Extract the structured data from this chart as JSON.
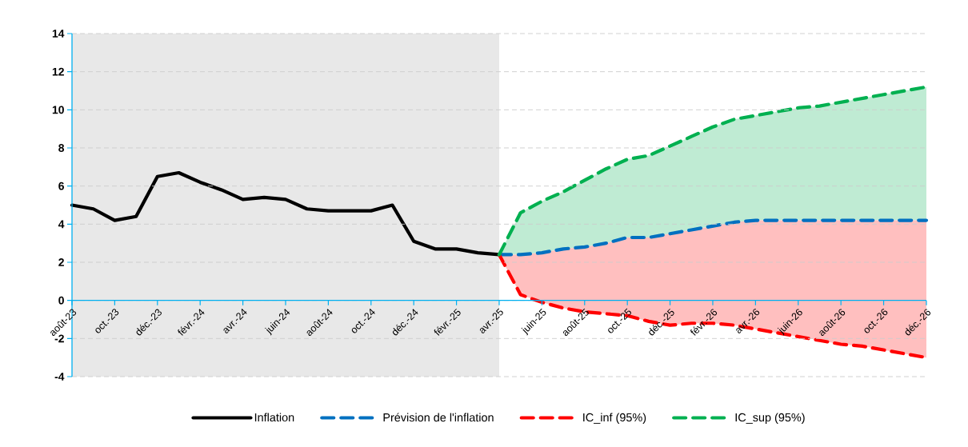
{
  "chart_data": {
    "type": "line",
    "grid": "y",
    "legend": "bottom",
    "marker": "none",
    "xlim": [
      "2023-08",
      "2026-12"
    ],
    "xticks": [
      {
        "value": "2023-08",
        "label": "août-23"
      },
      {
        "value": "2023-10",
        "label": "oct.-23"
      },
      {
        "value": "2023-12",
        "label": "déc.-23"
      },
      {
        "value": "2024-02",
        "label": "févr.-24"
      },
      {
        "value": "2024-04",
        "label": "avr.-24"
      },
      {
        "value": "2024-06",
        "label": "juin-24"
      },
      {
        "value": "2024-08",
        "label": "août-24"
      },
      {
        "value": "2024-10",
        "label": "oct.-24"
      },
      {
        "value": "2024-12",
        "label": "déc.-24"
      },
      {
        "value": "2025-02",
        "label": "févr.-25"
      },
      {
        "value": "2025-04",
        "label": "avr.-25"
      },
      {
        "value": "2025-06",
        "label": "juin-25"
      },
      {
        "value": "2025-08",
        "label": "août-25"
      },
      {
        "value": "2025-10",
        "label": "oct.-25"
      },
      {
        "value": "2025-12",
        "label": "déc.-25"
      },
      {
        "value": "2026-02",
        "label": "févr.-26"
      },
      {
        "value": "2026-04",
        "label": "avr.-26"
      },
      {
        "value": "2026-06",
        "label": "juin-26"
      },
      {
        "value": "2026-08",
        "label": "août-26"
      },
      {
        "value": "2026-10",
        "label": "oct.-26"
      },
      {
        "value": "2026-12",
        "label": "déc.-26"
      }
    ],
    "ylim": [
      -4,
      14
    ],
    "yticks": [
      -4,
      -2,
      0,
      2,
      4,
      6,
      8,
      10,
      12,
      14
    ],
    "bands": [
      {
        "axis": "x",
        "from": "2023-08",
        "to": "2025-04",
        "color": "#e8e8e8"
      }
    ],
    "series": [
      {
        "name": "Inflation",
        "color": "#000000",
        "line_style": "solid",
        "x": [
          "2023-08",
          "2023-09",
          "2023-10",
          "2023-11",
          "2023-12",
          "2024-01",
          "2024-02",
          "2024-03",
          "2024-04",
          "2024-05",
          "2024-06",
          "2024-07",
          "2024-08",
          "2024-09",
          "2024-10",
          "2024-11",
          "2024-12",
          "2025-01",
          "2025-02",
          "2025-03",
          "2025-04"
        ],
        "values": [
          5.0,
          4.8,
          4.2,
          4.4,
          6.5,
          6.7,
          6.2,
          5.8,
          5.3,
          5.4,
          5.3,
          4.8,
          4.7,
          4.7,
          4.7,
          5.0,
          3.1,
          2.7,
          2.7,
          2.5,
          2.4
        ]
      },
      {
        "name": "Prévision de l'inflation",
        "color": "#0070c0",
        "line_style": "dashed",
        "x": [
          "2025-04",
          "2025-05",
          "2025-06",
          "2025-07",
          "2025-08",
          "2025-09",
          "2025-10",
          "2025-11",
          "2025-12",
          "2026-01",
          "2026-02",
          "2026-03",
          "2026-04",
          "2026-05",
          "2026-06",
          "2026-07",
          "2026-08",
          "2026-09",
          "2026-10",
          "2026-11",
          "2026-12"
        ],
        "values": [
          2.4,
          2.4,
          2.5,
          2.7,
          2.8,
          3.0,
          3.3,
          3.3,
          3.5,
          3.7,
          3.9,
          4.1,
          4.2,
          4.2,
          4.2,
          4.2,
          4.2,
          4.2,
          4.2,
          4.2,
          4.2
        ],
        "lower": [
          2.4,
          2.4,
          2.5,
          2.7,
          2.8,
          3.0,
          3.3,
          3.3,
          3.5,
          3.7,
          3.9,
          4.1,
          4.2,
          4.2,
          4.2,
          4.2,
          4.2,
          4.2,
          4.2,
          4.2,
          4.2
        ],
        "upper": [
          2.4,
          4.6,
          5.2,
          5.7,
          6.3,
          6.9,
          7.4,
          7.6,
          8.1,
          8.6,
          9.1,
          9.5,
          9.7,
          9.9,
          10.1,
          10.2,
          10.4,
          10.6,
          10.8,
          11.0,
          11.2
        ]
      },
      {
        "name": "IC_inf (95%)",
        "color": "#ff0000",
        "line_style": "dashed",
        "x": [
          "2025-04",
          "2025-05",
          "2025-06",
          "2025-07",
          "2025-08",
          "2025-09",
          "2025-10",
          "2025-11",
          "2025-12",
          "2026-01",
          "2026-02",
          "2026-03",
          "2026-04",
          "2026-05",
          "2026-06",
          "2026-07",
          "2026-08",
          "2026-09",
          "2026-10",
          "2026-11",
          "2026-12"
        ],
        "values": [
          2.4,
          0.3,
          -0.1,
          -0.4,
          -0.6,
          -0.7,
          -0.8,
          -1.1,
          -1.3,
          -1.2,
          -1.2,
          -1.3,
          -1.5,
          -1.7,
          -1.9,
          -2.1,
          -2.3,
          -2.4,
          -2.6,
          -2.8,
          -3.0
        ],
        "lower": [
          2.4,
          0.3,
          -0.1,
          -0.4,
          -0.6,
          -0.7,
          -0.8,
          -1.1,
          -1.3,
          -1.2,
          -1.2,
          -1.3,
          -1.5,
          -1.7,
          -1.9,
          -2.1,
          -2.3,
          -2.4,
          -2.6,
          -2.8,
          -3.0
        ],
        "upper": [
          2.4,
          2.4,
          2.5,
          2.7,
          2.8,
          3.0,
          3.3,
          3.3,
          3.5,
          3.7,
          3.9,
          4.1,
          4.2,
          4.2,
          4.2,
          4.2,
          4.2,
          4.2,
          4.2,
          4.2,
          4.2
        ]
      },
      {
        "name": "IC_sup (95%)",
        "color": "#00b050",
        "line_style": "dashed",
        "x": [
          "2025-04",
          "2025-05",
          "2025-06",
          "2025-07",
          "2025-08",
          "2025-09",
          "2025-10",
          "2025-11",
          "2025-12",
          "2026-01",
          "2026-02",
          "2026-03",
          "2026-04",
          "2026-05",
          "2026-06",
          "2026-07",
          "2026-08",
          "2026-09",
          "2026-10",
          "2026-11",
          "2026-12"
        ],
        "values": [
          2.4,
          4.6,
          5.2,
          5.7,
          6.3,
          6.9,
          7.4,
          7.6,
          8.1,
          8.6,
          9.1,
          9.5,
          9.7,
          9.9,
          10.1,
          10.2,
          10.4,
          10.6,
          10.8,
          11.0,
          11.2
        ]
      }
    ]
  }
}
